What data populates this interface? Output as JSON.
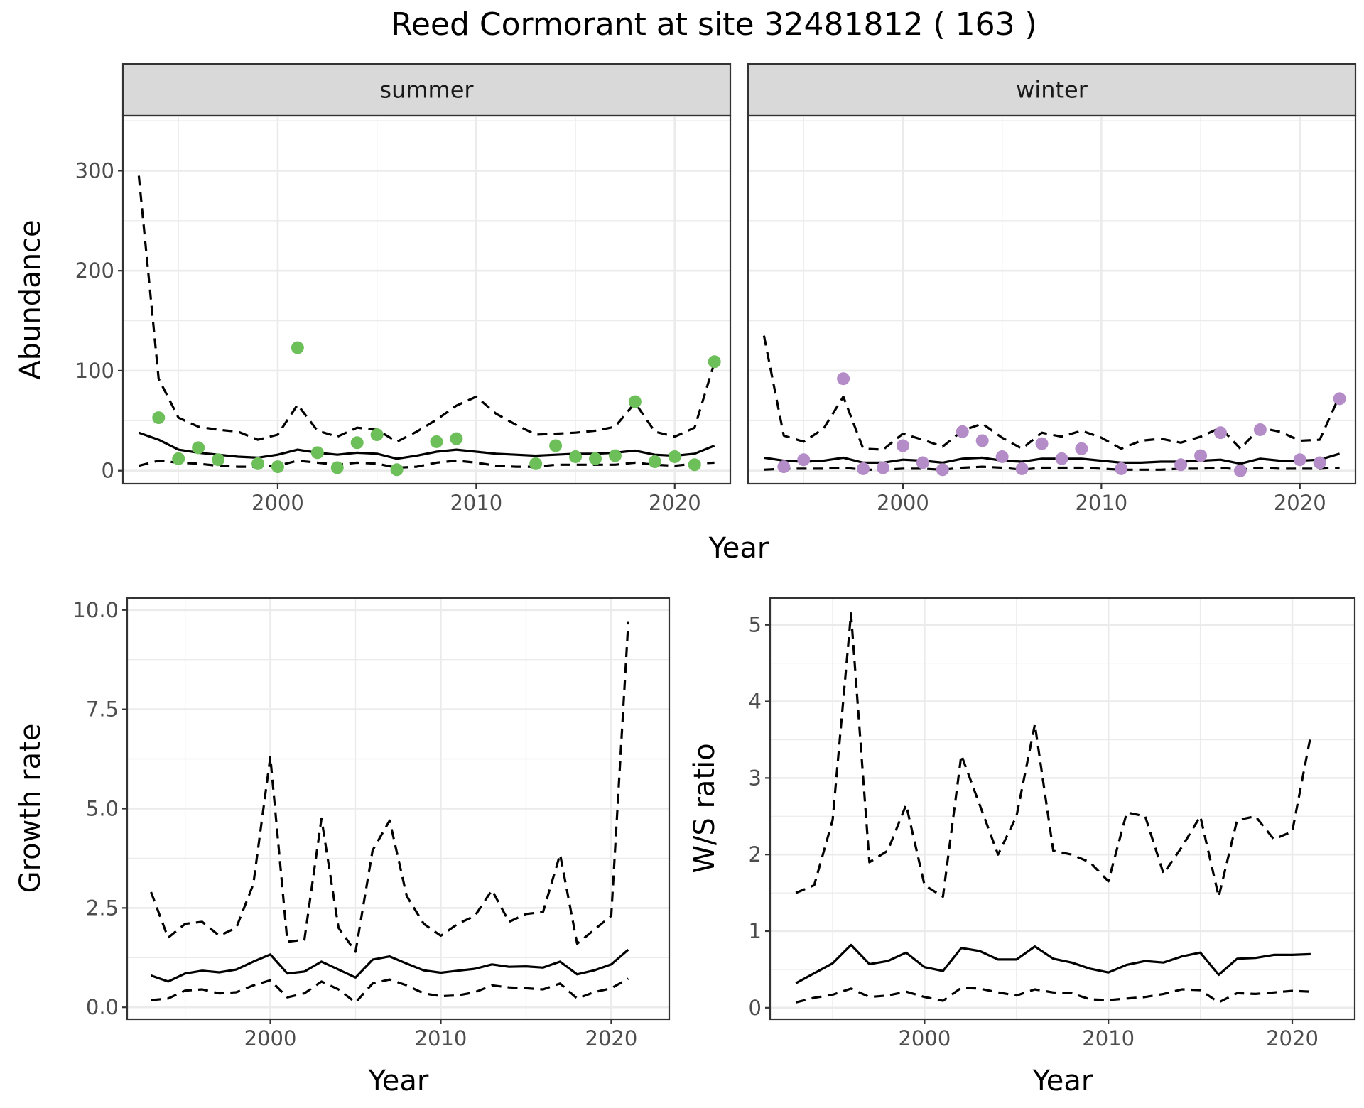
{
  "figure": {
    "title": "Reed Cormorant at site 32481812 ( 163 )"
  },
  "chart_data": [
    {
      "type": "line",
      "panel": "abundance-summer",
      "facet_label": "summer",
      "xlabel": "Year",
      "ylabel": "Abundance",
      "xlim": [
        1992.2,
        2022.8
      ],
      "ylim": [
        -13,
        355
      ],
      "x_ticks": [
        2000,
        2010,
        2020
      ],
      "y_ticks": [
        0,
        100,
        200,
        300
      ],
      "point_color": "#6dbf5a",
      "lines": {
        "x": [
          1993,
          1994,
          1995,
          1996,
          1997,
          1998,
          1999,
          2000,
          2001,
          2002,
          2003,
          2004,
          2005,
          2006,
          2007,
          2008,
          2009,
          2010,
          2011,
          2012,
          2013,
          2014,
          2015,
          2016,
          2017,
          2018,
          2019,
          2020,
          2021,
          2022
        ],
        "mean": [
          38,
          31,
          21,
          18,
          16,
          14,
          13,
          16,
          21,
          18,
          16,
          18,
          17,
          12,
          15,
          19,
          21,
          19,
          17,
          16,
          15,
          16,
          17,
          17,
          18,
          20,
          16,
          15,
          17,
          25
        ],
        "upper": [
          295,
          92,
          53,
          44,
          41,
          39,
          31,
          36,
          66,
          40,
          34,
          43,
          41,
          29,
          39,
          51,
          65,
          74,
          57,
          46,
          36,
          37,
          38,
          40,
          44,
          68,
          39,
          34,
          43,
          108
        ],
        "lower": [
          5,
          10,
          8,
          7,
          5,
          4,
          4,
          5,
          10,
          8,
          6,
          8,
          7,
          3,
          4,
          8,
          10,
          8,
          5,
          4,
          4,
          6,
          6,
          6,
          6,
          8,
          6,
          5,
          7,
          8
        ]
      },
      "points": {
        "x": [
          1994,
          1995,
          1996,
          1997,
          1999,
          2000,
          2001,
          2002,
          2003,
          2004,
          2005,
          2006,
          2008,
          2009,
          2013,
          2014,
          2015,
          2016,
          2017,
          2018,
          2019,
          2020,
          2021,
          2022
        ],
        "y": [
          53,
          12,
          23,
          11,
          7,
          4,
          123,
          18,
          3,
          28,
          36,
          1,
          29,
          32,
          7,
          25,
          14,
          12,
          15,
          69,
          9,
          14,
          6,
          109
        ]
      }
    },
    {
      "type": "line",
      "panel": "abundance-winter",
      "facet_label": "winter",
      "xlabel": "Year",
      "ylabel": "Abundance",
      "xlim": [
        1992.2,
        2022.8
      ],
      "ylim": [
        -13,
        355
      ],
      "x_ticks": [
        2000,
        2010,
        2020
      ],
      "point_color": "#b48cc8",
      "lines": {
        "x": [
          1993,
          1994,
          1995,
          1996,
          1997,
          1998,
          1999,
          2000,
          2001,
          2002,
          2003,
          2004,
          2005,
          2006,
          2007,
          2008,
          2009,
          2010,
          2011,
          2012,
          2013,
          2014,
          2015,
          2016,
          2017,
          2018,
          2019,
          2020,
          2021,
          2022
        ],
        "mean": [
          13,
          10,
          9,
          10,
          13,
          8,
          8,
          11,
          10,
          8,
          12,
          13,
          10,
          9,
          12,
          12,
          12,
          10,
          8,
          8,
          9,
          9,
          10,
          11,
          7,
          12,
          10,
          10,
          11,
          17
        ],
        "upper": [
          135,
          35,
          29,
          42,
          74,
          22,
          21,
          37,
          31,
          24,
          40,
          47,
          33,
          22,
          38,
          34,
          40,
          33,
          22,
          30,
          32,
          28,
          34,
          43,
          22,
          43,
          39,
          30,
          31,
          75
        ],
        "lower": [
          1,
          2,
          2,
          2,
          3,
          1,
          1,
          2,
          2,
          1,
          3,
          4,
          3,
          1,
          3,
          3,
          3,
          2,
          1,
          1,
          1,
          2,
          2,
          3,
          1,
          3,
          2,
          2,
          2,
          3
        ]
      },
      "points": {
        "x": [
          1994,
          1995,
          1997,
          1998,
          1999,
          2000,
          2001,
          2002,
          2003,
          2004,
          2005,
          2006,
          2007,
          2008,
          2009,
          2011,
          2014,
          2015,
          2016,
          2017,
          2018,
          2020,
          2021,
          2022
        ],
        "y": [
          4,
          11,
          92,
          2,
          3,
          25,
          8,
          1,
          39,
          30,
          14,
          2,
          27,
          12,
          22,
          2,
          6,
          15,
          38,
          0,
          41,
          11,
          8,
          72
        ]
      }
    },
    {
      "type": "line",
      "panel": "growth-rate",
      "xlabel": "Year",
      "ylabel": "Growth rate",
      "xlim": [
        1991.6,
        2023.4
      ],
      "ylim": [
        -0.3,
        10.3
      ],
      "x_ticks": [
        2000,
        2010,
        2020
      ],
      "y_ticks": [
        0.0,
        2.5,
        5.0,
        7.5,
        10.0
      ],
      "y_tick_labels": [
        "0.0",
        "2.5",
        "5.0",
        "7.5",
        "10.0"
      ],
      "lines": {
        "x": [
          1993,
          1994,
          1995,
          1996,
          1997,
          1998,
          1999,
          2000,
          2001,
          2002,
          2003,
          2004,
          2005,
          2006,
          2007,
          2008,
          2009,
          2010,
          2011,
          2012,
          2013,
          2014,
          2015,
          2016,
          2017,
          2018,
          2019,
          2020,
          2021
        ],
        "mean": [
          0.8,
          0.65,
          0.85,
          0.92,
          0.88,
          0.95,
          1.15,
          1.33,
          0.85,
          0.9,
          1.15,
          0.95,
          0.75,
          1.2,
          1.28,
          1.1,
          0.93,
          0.87,
          0.92,
          0.97,
          1.08,
          1.02,
          1.03,
          1.0,
          1.15,
          0.83,
          0.93,
          1.08,
          1.45
        ],
        "upper": [
          2.9,
          1.75,
          2.1,
          2.15,
          1.8,
          2.0,
          3.1,
          6.3,
          1.65,
          1.7,
          4.75,
          2.0,
          1.4,
          3.95,
          4.7,
          2.8,
          2.1,
          1.8,
          2.1,
          2.3,
          2.95,
          2.15,
          2.35,
          2.4,
          3.85,
          1.6,
          1.95,
          2.3,
          9.7
        ],
        "lower": [
          0.18,
          0.22,
          0.42,
          0.45,
          0.35,
          0.38,
          0.55,
          0.68,
          0.25,
          0.35,
          0.65,
          0.45,
          0.12,
          0.6,
          0.7,
          0.55,
          0.35,
          0.28,
          0.3,
          0.38,
          0.55,
          0.5,
          0.48,
          0.45,
          0.6,
          0.22,
          0.38,
          0.48,
          0.72
        ]
      }
    },
    {
      "type": "line",
      "panel": "ws-ratio",
      "xlabel": "Year",
      "ylabel": "W/S ratio",
      "xlim": [
        1991.6,
        2023.4
      ],
      "ylim": [
        -0.15,
        5.35
      ],
      "x_ticks": [
        2000,
        2010,
        2020
      ],
      "y_ticks": [
        0,
        1,
        2,
        3,
        4,
        5
      ],
      "lines": {
        "x": [
          1993,
          1994,
          1995,
          1996,
          1997,
          1998,
          1999,
          2000,
          2001,
          2002,
          2003,
          2004,
          2005,
          2006,
          2007,
          2008,
          2009,
          2010,
          2011,
          2012,
          2013,
          2014,
          2015,
          2016,
          2017,
          2018,
          2019,
          2020,
          2021
        ],
        "mean": [
          0.32,
          0.45,
          0.58,
          0.82,
          0.57,
          0.61,
          0.72,
          0.53,
          0.48,
          0.78,
          0.74,
          0.63,
          0.63,
          0.8,
          0.64,
          0.59,
          0.51,
          0.46,
          0.56,
          0.61,
          0.59,
          0.67,
          0.72,
          0.43,
          0.64,
          0.65,
          0.69,
          0.69,
          0.7
        ],
        "upper": [
          1.5,
          1.6,
          2.45,
          5.15,
          1.9,
          2.05,
          2.65,
          1.6,
          1.45,
          3.3,
          2.65,
          2.0,
          2.5,
          3.7,
          2.05,
          2.0,
          1.9,
          1.65,
          2.55,
          2.5,
          1.75,
          2.1,
          2.5,
          1.45,
          2.45,
          2.5,
          2.2,
          2.3,
          3.55
        ],
        "lower": [
          0.07,
          0.13,
          0.17,
          0.25,
          0.14,
          0.16,
          0.21,
          0.14,
          0.09,
          0.26,
          0.25,
          0.2,
          0.16,
          0.24,
          0.2,
          0.19,
          0.11,
          0.1,
          0.12,
          0.14,
          0.18,
          0.24,
          0.23,
          0.07,
          0.19,
          0.18,
          0.2,
          0.22,
          0.21
        ]
      }
    }
  ]
}
